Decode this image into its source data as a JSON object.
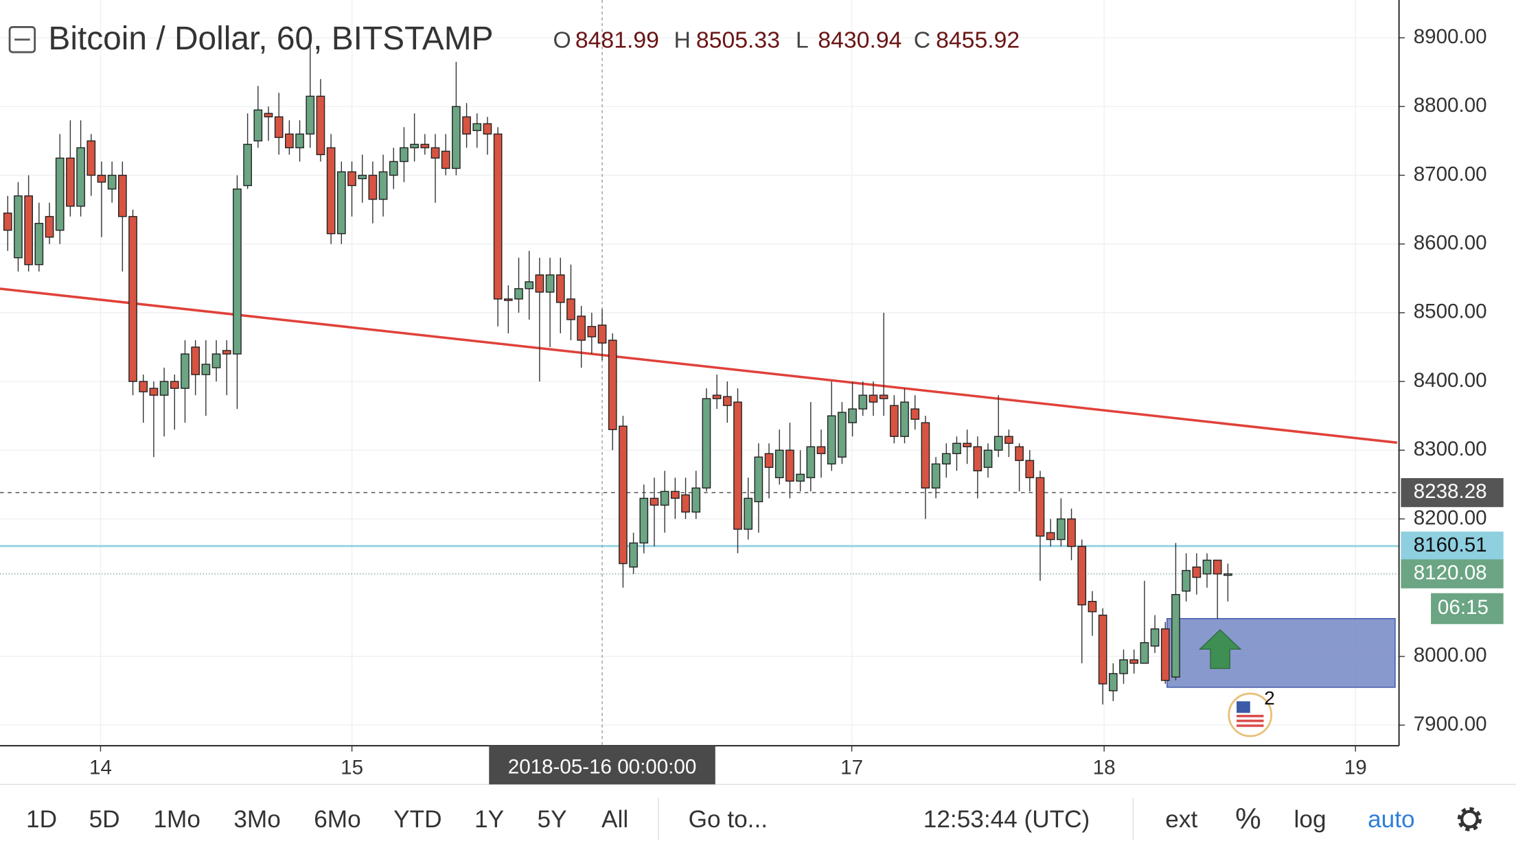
{
  "chart_data": {
    "type": "candlestick",
    "title": "Bitcoin / Dollar, 60, BITSTAMP",
    "ohlc_labels": [
      "O",
      "H",
      "L",
      "C"
    ],
    "hover_index": 57,
    "hover_time": "2018-05-16 00:00:00",
    "xtick_labels": [
      "14",
      "15",
      "17",
      "18",
      "19"
    ],
    "up_color": "#6ba583",
    "down_color": "#d75442",
    "open": [
      8645,
      8580,
      8670,
      8570,
      8640,
      8620,
      8725,
      8655,
      8750,
      8700,
      8680,
      8700,
      8640,
      8400,
      8390,
      8380,
      8400,
      8390,
      8450,
      8410,
      8420,
      8445,
      8440,
      8685,
      8750,
      8790,
      8785,
      8760,
      8740,
      8760,
      8815,
      8740,
      8615,
      8705,
      8695,
      8700,
      8665,
      8700,
      8720,
      8740,
      8745,
      8740,
      8735,
      8710,
      8785,
      8765,
      8775,
      8760,
      8520,
      8520,
      8535,
      8555,
      8530,
      8555,
      8520,
      8495,
      8480,
      8481.99,
      8460,
      8335,
      8130,
      8165,
      8230,
      8220,
      8240,
      8235,
      8210,
      8245,
      8380,
      8378,
      8370,
      8185,
      8225,
      8295,
      8260,
      8300,
      8255,
      8260,
      8305,
      8280,
      8290,
      8340,
      8360,
      8380,
      8380,
      8365,
      8320,
      8360,
      8340,
      8245,
      8280,
      8295,
      8310,
      8305,
      8275,
      8300,
      8320,
      8305,
      8285,
      8260,
      8180,
      8170,
      8200,
      8160,
      8080,
      8060,
      7950,
      7975,
      7995,
      7990,
      8015,
      8040,
      7970,
      8095,
      8130,
      8120,
      8140,
      8118
    ],
    "high": [
      8670,
      8690,
      8700,
      8660,
      8660,
      8760,
      8780,
      8780,
      8760,
      8720,
      8720,
      8720,
      8650,
      8410,
      8400,
      8420,
      8410,
      8460,
      8460,
      8460,
      8460,
      8460,
      8700,
      8790,
      8830,
      8800,
      8820,
      8780,
      8780,
      8900,
      8840,
      8760,
      8720,
      8720,
      8730,
      8720,
      8730,
      8740,
      8770,
      8790,
      8760,
      8760,
      8760,
      8865,
      8805,
      8790,
      8785,
      8770,
      8540,
      8580,
      8590,
      8580,
      8580,
      8580,
      8570,
      8510,
      8500,
      8505.33,
      8470,
      8350,
      8180,
      8250,
      8260,
      8270,
      8260,
      8260,
      8270,
      8390,
      8410,
      8400,
      8390,
      8260,
      8310,
      8310,
      8330,
      8340,
      8300,
      8370,
      8330,
      8400,
      8370,
      8400,
      8400,
      8400,
      8500,
      8380,
      8390,
      8380,
      8350,
      8290,
      8310,
      8320,
      8330,
      8320,
      8310,
      8380,
      8330,
      8310,
      8300,
      8270,
      8200,
      8230,
      8215,
      8170,
      8095,
      8070,
      7990,
      8010,
      8010,
      8110,
      8060,
      8050,
      8165,
      8150,
      8150,
      8150,
      8140,
      8135
    ],
    "low": [
      8590,
      8560,
      8560,
      8560,
      8600,
      8600,
      8640,
      8640,
      8670,
      8610,
      8660,
      8560,
      8380,
      8340,
      8290,
      8320,
      8330,
      8340,
      8380,
      8350,
      8400,
      8380,
      8360,
      8680,
      8740,
      8750,
      8730,
      8730,
      8720,
      8740,
      8720,
      8600,
      8600,
      8640,
      8660,
      8630,
      8640,
      8680,
      8690,
      8720,
      8730,
      8660,
      8700,
      8700,
      8740,
      8740,
      8730,
      8480,
      8470,
      8500,
      8490,
      8400,
      8450,
      8470,
      8460,
      8420,
      8440,
      8430.94,
      8300,
      8100,
      8120,
      8150,
      8160,
      8180,
      8200,
      8200,
      8200,
      8240,
      8360,
      8340,
      8150,
      8170,
      8180,
      8230,
      8250,
      8230,
      8240,
      8240,
      8260,
      8270,
      8280,
      8320,
      8350,
      8350,
      8350,
      8310,
      8310,
      8330,
      8200,
      8230,
      8260,
      8270,
      8280,
      8230,
      8260,
      8290,
      8290,
      8240,
      8240,
      8110,
      8160,
      8160,
      8140,
      7990,
      8030,
      7930,
      7935,
      7960,
      7975,
      7990,
      8005,
      7960,
      7965,
      8080,
      8090,
      8100,
      8055,
      8080
    ],
    "close": [
      8620,
      8670,
      8570,
      8630,
      8610,
      8725,
      8655,
      8740,
      8700,
      8690,
      8700,
      8640,
      8400,
      8385,
      8380,
      8400,
      8390,
      8440,
      8410,
      8425,
      8440,
      8440,
      8680,
      8745,
      8795,
      8785,
      8755,
      8740,
      8760,
      8815,
      8730,
      8615,
      8705,
      8685,
      8700,
      8665,
      8705,
      8720,
      8740,
      8745,
      8740,
      8725,
      8710,
      8800,
      8760,
      8775,
      8760,
      8520,
      8518,
      8535,
      8545,
      8530,
      8555,
      8515,
      8490,
      8460,
      8465,
      8455.92,
      8330,
      8135,
      8165,
      8230,
      8220,
      8240,
      8230,
      8210,
      8245,
      8375,
      8375,
      8365,
      8185,
      8230,
      8290,
      8275,
      8300,
      8255,
      8265,
      8305,
      8295,
      8350,
      8355,
      8360,
      8380,
      8370,
      8375,
      8320,
      8370,
      8345,
      8245,
      8280,
      8295,
      8310,
      8305,
      8270,
      8300,
      8320,
      8310,
      8285,
      8260,
      8175,
      8170,
      8200,
      8160,
      8075,
      8065,
      7960,
      7975,
      7995,
      7990,
      8020,
      8040,
      7965,
      8090,
      8125,
      8115,
      8140,
      8120,
      8120.08
    ],
    "trendline": {
      "color": "#e0413a",
      "values": [
        8535,
        8311
      ]
    },
    "zone": {
      "color": "#6a7fc0",
      "values": [
        8055,
        7955
      ]
    },
    "hlines": [
      {
        "value": 8238.28,
        "color": "#555555"
      },
      {
        "value": 8160.51,
        "color": "#8ecfe0"
      }
    ],
    "countdown": "06:15",
    "event_badge": "2",
    "ylim": [
      7870,
      8955
    ],
    "yticks": [
      {
        "value": 7900,
        "label": "7900.00"
      },
      {
        "value": 8000,
        "label": "8000.00"
      },
      {
        "value": 8200,
        "label": "8200.00"
      },
      {
        "value": 8300,
        "label": "8300.00"
      },
      {
        "value": 8400,
        "label": "8400.00"
      },
      {
        "value": 8500,
        "label": "8500.00"
      },
      {
        "value": 8600,
        "label": "8600.00"
      },
      {
        "value": 8700,
        "label": "8700.00"
      },
      {
        "value": 8800,
        "label": "8800.00"
      },
      {
        "value": 8900,
        "label": "8900.00"
      }
    ],
    "grid": true
  },
  "toolbar": {
    "ranges": [
      "1D",
      "5D",
      "1Mo",
      "3Mo",
      "6Mo",
      "YTD",
      "1Y",
      "5Y",
      "All"
    ],
    "goto": "Go to...",
    "clock": "12:53:44 (UTC)",
    "options": [
      "ext",
      "%",
      "log",
      "auto"
    ]
  }
}
